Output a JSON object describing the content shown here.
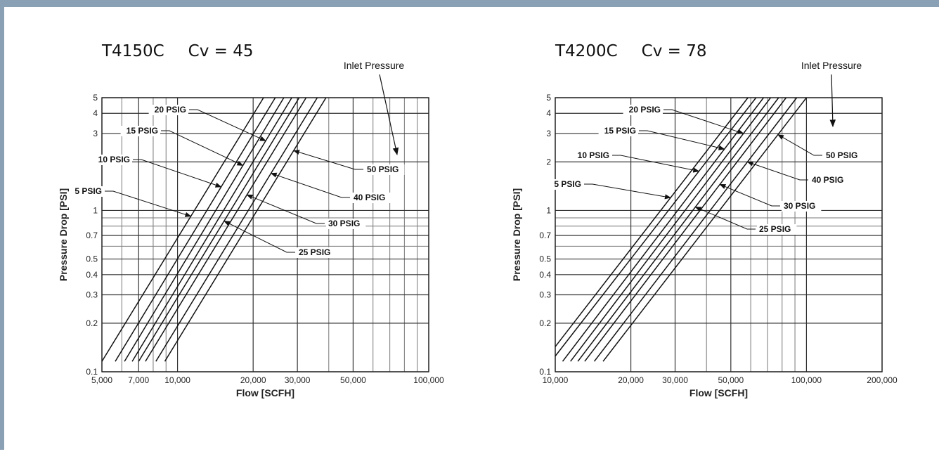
{
  "chart_data": [
    {
      "type": "line",
      "model": "T4150C",
      "cv_text": "Cv = 45",
      "xlabel": "Flow [SCFH]",
      "ylabel": "Pressure Drop [PSI]",
      "x_scale": "log",
      "y_scale": "log",
      "xlim": [
        5000,
        100000
      ],
      "ylim": [
        0.1,
        5
      ],
      "x_ticks": [
        {
          "value": 5000,
          "label": "5,000"
        },
        {
          "value": 7000,
          "label": "7,000"
        },
        {
          "value": 10000,
          "label": "10,000"
        },
        {
          "value": 20000,
          "label": "20,000"
        },
        {
          "value": 30000,
          "label": "30,000"
        },
        {
          "value": 50000,
          "label": "50,000"
        },
        {
          "value": 100000,
          "label": "100,000"
        }
      ],
      "y_ticks": [
        {
          "value": 0.1,
          "label": "0.1"
        },
        {
          "value": 0.2,
          "label": "0.2"
        },
        {
          "value": 0.3,
          "label": "0.3"
        },
        {
          "value": 0.4,
          "label": "0.4"
        },
        {
          "value": 0.5,
          "label": "0.5"
        },
        {
          "value": 0.7,
          "label": "0.7"
        },
        {
          "value": 1,
          "label": "1"
        },
        {
          "value": 2,
          "label": "2"
        },
        {
          "value": 3,
          "label": "3"
        },
        {
          "value": 4,
          "label": "4"
        },
        {
          "value": 5,
          "label": "5"
        }
      ],
      "x_minor_grid": [
        6000,
        8000,
        9000,
        40000,
        60000,
        70000,
        80000,
        90000
      ],
      "y_minor_grid": [
        0.6,
        0.8,
        0.9
      ],
      "grid": true,
      "annotation": "Inlet Pressure",
      "series": [
        {
          "name": "5 PSIG",
          "x": [
            5000,
            22000
          ],
          "y": [
            0.116,
            5
          ]
        },
        {
          "name": "10 PSIG",
          "x": [
            5650,
            24500
          ],
          "y": [
            0.116,
            5
          ]
        },
        {
          "name": "15 PSIG",
          "x": [
            6150,
            26500
          ],
          "y": [
            0.116,
            5
          ]
        },
        {
          "name": "20 PSIG",
          "x": [
            6600,
            28500
          ],
          "y": [
            0.116,
            5
          ]
        },
        {
          "name": "25 PSIG",
          "x": [
            7000,
            30500
          ],
          "y": [
            0.116,
            5
          ]
        },
        {
          "name": "30 PSIG",
          "x": [
            7450,
            32500
          ],
          "y": [
            0.116,
            5
          ]
        },
        {
          "name": "40 PSIG",
          "x": [
            8200,
            36000
          ],
          "y": [
            0.116,
            5
          ]
        },
        {
          "name": "50 PSIG",
          "x": [
            8900,
            39000
          ],
          "y": [
            0.116,
            5
          ]
        }
      ]
    },
    {
      "type": "line",
      "model": "T4200C",
      "cv_text": "Cv = 78",
      "xlabel": "Flow [SCFH]",
      "ylabel": "Pressure Drop [PSI]",
      "x_scale": "log",
      "y_scale": "log",
      "xlim": [
        10000,
        200000
      ],
      "ylim": [
        0.1,
        5
      ],
      "x_ticks": [
        {
          "value": 10000,
          "label": "10,000"
        },
        {
          "value": 20000,
          "label": "20,000"
        },
        {
          "value": 30000,
          "label": "30,000"
        },
        {
          "value": 50000,
          "label": "50,000"
        },
        {
          "value": 100000,
          "label": "100,000"
        },
        {
          "value": 200000,
          "label": "200,000"
        }
      ],
      "y_ticks": [
        {
          "value": 0.1,
          "label": "0.1"
        },
        {
          "value": 0.2,
          "label": "0.2"
        },
        {
          "value": 0.3,
          "label": "0.3"
        },
        {
          "value": 0.4,
          "label": "0.4"
        },
        {
          "value": 0.5,
          "label": "0.5"
        },
        {
          "value": 0.7,
          "label": "0.7"
        },
        {
          "value": 1,
          "label": "1"
        },
        {
          "value": 2,
          "label": "2"
        },
        {
          "value": 3,
          "label": "3"
        },
        {
          "value": 4,
          "label": "4"
        },
        {
          "value": 5,
          "label": "5"
        }
      ],
      "x_minor_grid": [
        40000,
        60000,
        70000,
        80000,
        90000
      ],
      "y_minor_grid": [
        0.6,
        0.8,
        0.9
      ],
      "grid": true,
      "annotation": "Inlet Pressure",
      "series": [
        {
          "name": "5 PSIG",
          "x": [
            10000,
            58500
          ],
          "y": [
            0.143,
            5
          ]
        },
        {
          "name": "10 PSIG",
          "x": [
            10000,
            63000
          ],
          "y": [
            0.125,
            5
          ]
        },
        {
          "name": "15 PSIG",
          "x": [
            10700,
            67500
          ],
          "y": [
            0.116,
            5
          ]
        },
        {
          "name": "20 PSIG",
          "x": [
            11500,
            72000
          ],
          "y": [
            0.116,
            5
          ]
        },
        {
          "name": "25 PSIG",
          "x": [
            12300,
            77500
          ],
          "y": [
            0.116,
            5
          ]
        },
        {
          "name": "30 PSIG",
          "x": [
            13100,
            83000
          ],
          "y": [
            0.116,
            5
          ]
        },
        {
          "name": "40 PSIG",
          "x": [
            14300,
            91500
          ],
          "y": [
            0.116,
            5
          ]
        },
        {
          "name": "50 PSIG",
          "x": [
            15500,
            100000
          ],
          "y": [
            0.116,
            5
          ]
        }
      ]
    }
  ]
}
